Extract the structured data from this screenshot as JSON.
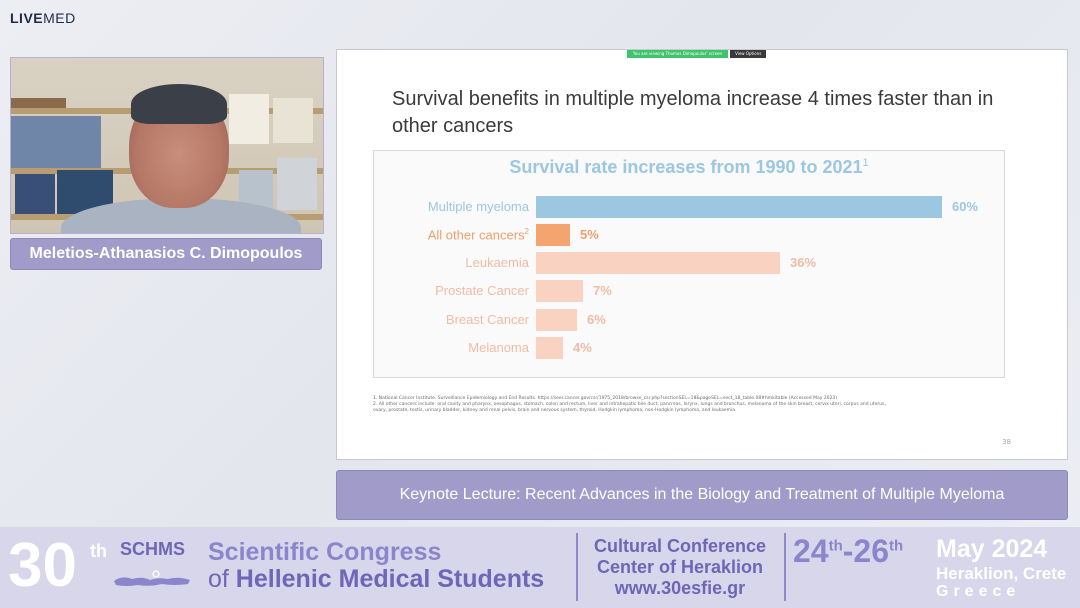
{
  "brand": {
    "live": "LIVE",
    "med": "MED"
  },
  "speaker": {
    "name": "Meletios-Athanasios C. Dimopoulos"
  },
  "slide": {
    "zoom_notice": "You are viewing Thomas Dimopoulos' screen",
    "zoom_options": "View Options",
    "title": "Survival benefits in multiple myeloma increase 4 times faster than in other cancers",
    "footnotes": [
      "1. National Cancer Institute. Surveillance Epidemiology and End Results. https://seer.cancer.gov/csr/1975_2018/browse_csr.php?sectionSEL=18&pageSEL=sect_18_table.08#hmkitable (Accessed May 2023)",
      "2. All other cancers include: oral cavity and pharynx, oesophagus, stomach, colon and rectum, liver and intrahepatic bile duct, pancreas, larynx, lungs and bronchus, melanoma of the skin breast, cervix uteri, corpus and uterus, ovary, prostate, testis, urinary bladder, kidney and renal pelvis, brain and nervous system, thyroid, Hodgkin lymphoma, non-Hodgkin lymphoma, and leukaemia."
    ],
    "page_number": "38"
  },
  "chart_data": {
    "type": "bar",
    "orientation": "horizontal",
    "title": "Survival rate increases from 1990 to 2021",
    "title_superscript": "1",
    "categories": [
      "Multiple myeloma",
      "All other cancers",
      "Leukaemia",
      "Prostate Cancer",
      "Breast Cancer",
      "Melanoma"
    ],
    "category_superscripts": [
      "",
      "2",
      "",
      "",
      "",
      ""
    ],
    "values": [
      60,
      5,
      36,
      7,
      6,
      4
    ],
    "value_labels": [
      "60%",
      "5%",
      "36%",
      "7%",
      "6%",
      "4%"
    ],
    "colors": [
      "#9cc7e0",
      "#f3a46f",
      "#f9d2c1",
      "#f9d2c1",
      "#f9d2c1",
      "#f9d2c1"
    ],
    "label_colors": [
      "#9cc7e0",
      "#f0a06b",
      "#f2bba6",
      "#f2bba6",
      "#f2bba6",
      "#f2bba6"
    ],
    "xlim": [
      0,
      60
    ],
    "grid": false
  },
  "lecture": {
    "title": "Keynote Lecture: Recent Advances in the Biology and Treatment of Multiple Myeloma"
  },
  "footer": {
    "number": "30",
    "number_suffix": "th",
    "society": "SCHMS",
    "line1": "Scientific Congress",
    "line2_pre": "of ",
    "line2_bold": "Hellenic Medical Students",
    "venue_1": "Cultural Conference",
    "venue_2": "Center of Heraklion",
    "website": "www.30esfie.gr",
    "date_start": "24",
    "date_start_suffix": "th",
    "date_sep": "-",
    "date_end": "26",
    "date_end_suffix": "th",
    "month_year": "May 2024",
    "city": "Heraklion, Crete",
    "country": "Greece"
  }
}
